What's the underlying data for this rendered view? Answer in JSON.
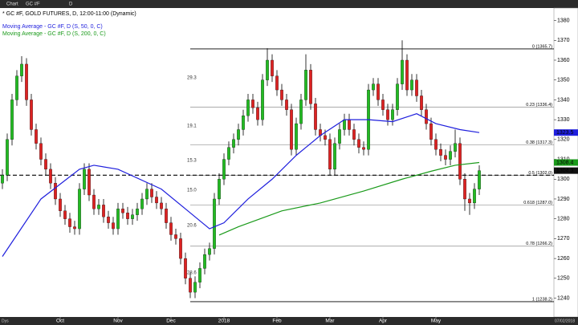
{
  "toolbar": {
    "menu": "Chart",
    "symbol": "GC #F",
    "interval": "D"
  },
  "chart_data": {
    "type": "candlestick",
    "title": "* GC #F, GOLD FUTURES, D, 12:00-11:00 (Dynamic)",
    "ylim": [
      1230.5,
      1386.3
    ],
    "yticks": [
      1240,
      1250,
      1260,
      1270,
      1280,
      1290,
      1300,
      1310,
      1320,
      1330,
      1340,
      1350,
      1360,
      1370,
      1380
    ],
    "xlim": [
      -0.5,
      99.5
    ],
    "xticks": [
      {
        "value": 12,
        "label": "Oct"
      },
      {
        "value": 24,
        "label": "Nov"
      },
      {
        "value": 35,
        "label": "Dec"
      },
      {
        "value": 46,
        "label": "2018"
      },
      {
        "value": 57,
        "label": "Feb"
      },
      {
        "value": 68,
        "label": "Mar"
      },
      {
        "value": 79,
        "label": "Apr"
      },
      {
        "value": 90,
        "label": "May"
      }
    ],
    "up_color": "#22bb22",
    "down_color": "#dd2222",
    "ohlc": [
      [
        1298,
        1305,
        1295,
        1302
      ],
      [
        1302,
        1323,
        1299,
        1320
      ],
      [
        1320,
        1343,
        1317,
        1340
      ],
      [
        1340,
        1355,
        1337,
        1352
      ],
      [
        1352,
        1362,
        1349,
        1358
      ],
      [
        1358,
        1361,
        1337,
        1340
      ],
      [
        1340,
        1343,
        1322,
        1325
      ],
      [
        1325,
        1328,
        1315,
        1318
      ],
      [
        1318,
        1321,
        1307,
        1310
      ],
      [
        1310,
        1313,
        1302,
        1305
      ],
      [
        1305,
        1308,
        1295,
        1298
      ],
      [
        1298,
        1301,
        1287,
        1290
      ],
      [
        1290,
        1293,
        1281,
        1284
      ],
      [
        1284,
        1287,
        1277,
        1280
      ],
      [
        1280,
        1283,
        1273,
        1276
      ],
      [
        1276,
        1279,
        1272,
        1275
      ],
      [
        1275,
        1298,
        1272,
        1295
      ],
      [
        1295,
        1308,
        1292,
        1305
      ],
      [
        1305,
        1308,
        1289,
        1292
      ],
      [
        1292,
        1295,
        1282,
        1285
      ],
      [
        1285,
        1290,
        1282,
        1287
      ],
      [
        1287,
        1290,
        1278,
        1281
      ],
      [
        1281,
        1284,
        1275,
        1278
      ],
      [
        1278,
        1281,
        1272,
        1275
      ],
      [
        1275,
        1288,
        1272,
        1285
      ],
      [
        1285,
        1288,
        1280,
        1283
      ],
      [
        1283,
        1286,
        1277,
        1280
      ],
      [
        1280,
        1285,
        1277,
        1282
      ],
      [
        1282,
        1288,
        1279,
        1285
      ],
      [
        1285,
        1293,
        1282,
        1290
      ],
      [
        1290,
        1298,
        1287,
        1295
      ],
      [
        1295,
        1298,
        1288,
        1291
      ],
      [
        1291,
        1294,
        1285,
        1288
      ],
      [
        1288,
        1291,
        1282,
        1285
      ],
      [
        1285,
        1288,
        1275,
        1278
      ],
      [
        1278,
        1281,
        1269,
        1272
      ],
      [
        1272,
        1275,
        1267,
        1270
      ],
      [
        1270,
        1273,
        1257,
        1260
      ],
      [
        1260,
        1263,
        1247,
        1250
      ],
      [
        1250,
        1253,
        1240,
        1243
      ],
      [
        1243,
        1251,
        1240,
        1248
      ],
      [
        1248,
        1258,
        1245,
        1255
      ],
      [
        1255,
        1265,
        1252,
        1262
      ],
      [
        1262,
        1268,
        1259,
        1265
      ],
      [
        1265,
        1293,
        1262,
        1290
      ],
      [
        1290,
        1303,
        1287,
        1300
      ],
      [
        1300,
        1313,
        1297,
        1310
      ],
      [
        1310,
        1319,
        1307,
        1316
      ],
      [
        1316,
        1323,
        1313,
        1320
      ],
      [
        1320,
        1328,
        1317,
        1325
      ],
      [
        1325,
        1335,
        1322,
        1332
      ],
      [
        1332,
        1343,
        1329,
        1340
      ],
      [
        1340,
        1343,
        1333,
        1336
      ],
      [
        1336,
        1339,
        1327,
        1330
      ],
      [
        1330,
        1353,
        1327,
        1350
      ],
      [
        1350,
        1366,
        1347,
        1360
      ],
      [
        1360,
        1363,
        1349,
        1352
      ],
      [
        1352,
        1355,
        1342,
        1345
      ],
      [
        1345,
        1348,
        1337,
        1340
      ],
      [
        1340,
        1343,
        1332,
        1335
      ],
      [
        1335,
        1338,
        1312,
        1315
      ],
      [
        1315,
        1331,
        1312,
        1328
      ],
      [
        1328,
        1343,
        1325,
        1340
      ],
      [
        1340,
        1363,
        1337,
        1355
      ],
      [
        1355,
        1358,
        1335,
        1338
      ],
      [
        1338,
        1341,
        1322,
        1325
      ],
      [
        1325,
        1328,
        1319,
        1322
      ],
      [
        1322,
        1325,
        1317,
        1320
      ],
      [
        1320,
        1323,
        1302,
        1305
      ],
      [
        1305,
        1321,
        1302,
        1318
      ],
      [
        1318,
        1328,
        1315,
        1325
      ],
      [
        1325,
        1333,
        1322,
        1330
      ],
      [
        1330,
        1333,
        1322,
        1325
      ],
      [
        1325,
        1328,
        1317,
        1320
      ],
      [
        1320,
        1323,
        1313,
        1316
      ],
      [
        1316,
        1319,
        1312,
        1315
      ],
      [
        1315,
        1348,
        1312,
        1345
      ],
      [
        1345,
        1351,
        1342,
        1348
      ],
      [
        1348,
        1351,
        1337,
        1340
      ],
      [
        1340,
        1343,
        1332,
        1335
      ],
      [
        1335,
        1338,
        1327,
        1330
      ],
      [
        1330,
        1338,
        1327,
        1335
      ],
      [
        1335,
        1351,
        1332,
        1348
      ],
      [
        1348,
        1370,
        1345,
        1360
      ],
      [
        1360,
        1363,
        1342,
        1345
      ],
      [
        1345,
        1353,
        1342,
        1350
      ],
      [
        1350,
        1353,
        1339,
        1342
      ],
      [
        1342,
        1345,
        1332,
        1335
      ],
      [
        1335,
        1338,
        1325,
        1328
      ],
      [
        1328,
        1331,
        1317,
        1320
      ],
      [
        1320,
        1323,
        1312,
        1315
      ],
      [
        1315,
        1318,
        1309,
        1312
      ],
      [
        1312,
        1315,
        1307,
        1310
      ],
      [
        1310,
        1317,
        1307,
        1314
      ],
      [
        1314,
        1325,
        1311,
        1318
      ],
      [
        1318,
        1321,
        1297,
        1300
      ],
      [
        1300,
        1303,
        1284,
        1290
      ],
      [
        1290,
        1293,
        1282,
        1288
      ],
      [
        1288,
        1298,
        1285,
        1295
      ],
      [
        1295,
        1307,
        1292,
        1304.3
      ]
    ],
    "series": [
      {
        "name": "Moving Average - GC #F, D (S, 50, 0, C)",
        "color": "#1f1fdd",
        "x": [
          0,
          8,
          16,
          19,
          24,
          33,
          38,
          43,
          46,
          51,
          56,
          61,
          66,
          71,
          76,
          81,
          86,
          90,
          95,
          99
        ],
        "values": [
          1261,
          1290,
          1305,
          1307,
          1305,
          1295,
          1285,
          1275,
          1278,
          1290,
          1300,
          1312,
          1322,
          1330,
          1330,
          1329,
          1333,
          1328,
          1325,
          1323.5
        ]
      },
      {
        "name": "Moving Average - GC #F, D (S, 200, 0, C)",
        "color": "#1a9a1a",
        "x": [
          45,
          49,
          58,
          66,
          75,
          83,
          89,
          94,
          99
        ],
        "values": [
          1271.8,
          1276,
          1284,
          1288,
          1294,
          1300,
          1304,
          1307,
          1308.4
        ]
      }
    ],
    "dashed_level": 1302,
    "fib_start": 39,
    "fib_levels": [
      {
        "value": 1365.7,
        "label": "0 (1365.7)"
      },
      {
        "value": 1336.4,
        "label": "0.23 (1336.4)"
      },
      {
        "value": 1317.3,
        "label": "0.38 (1317.3)"
      },
      {
        "value": 1302.0,
        "label": "0.5 (1302.0)"
      },
      {
        "value": 1287.0,
        "label": "0.618 (1287.0)"
      },
      {
        "value": 1266.2,
        "label": "0.78 (1266.2)"
      },
      {
        "value": 1238.2,
        "label": "1 (1238.2)"
      }
    ],
    "side_labels": [
      "29.3",
      "19.1",
      "15.3",
      "15.0",
      "20.6",
      "28.6"
    ],
    "x_unit": "Dys",
    "date_label": "07/02/2018"
  }
}
